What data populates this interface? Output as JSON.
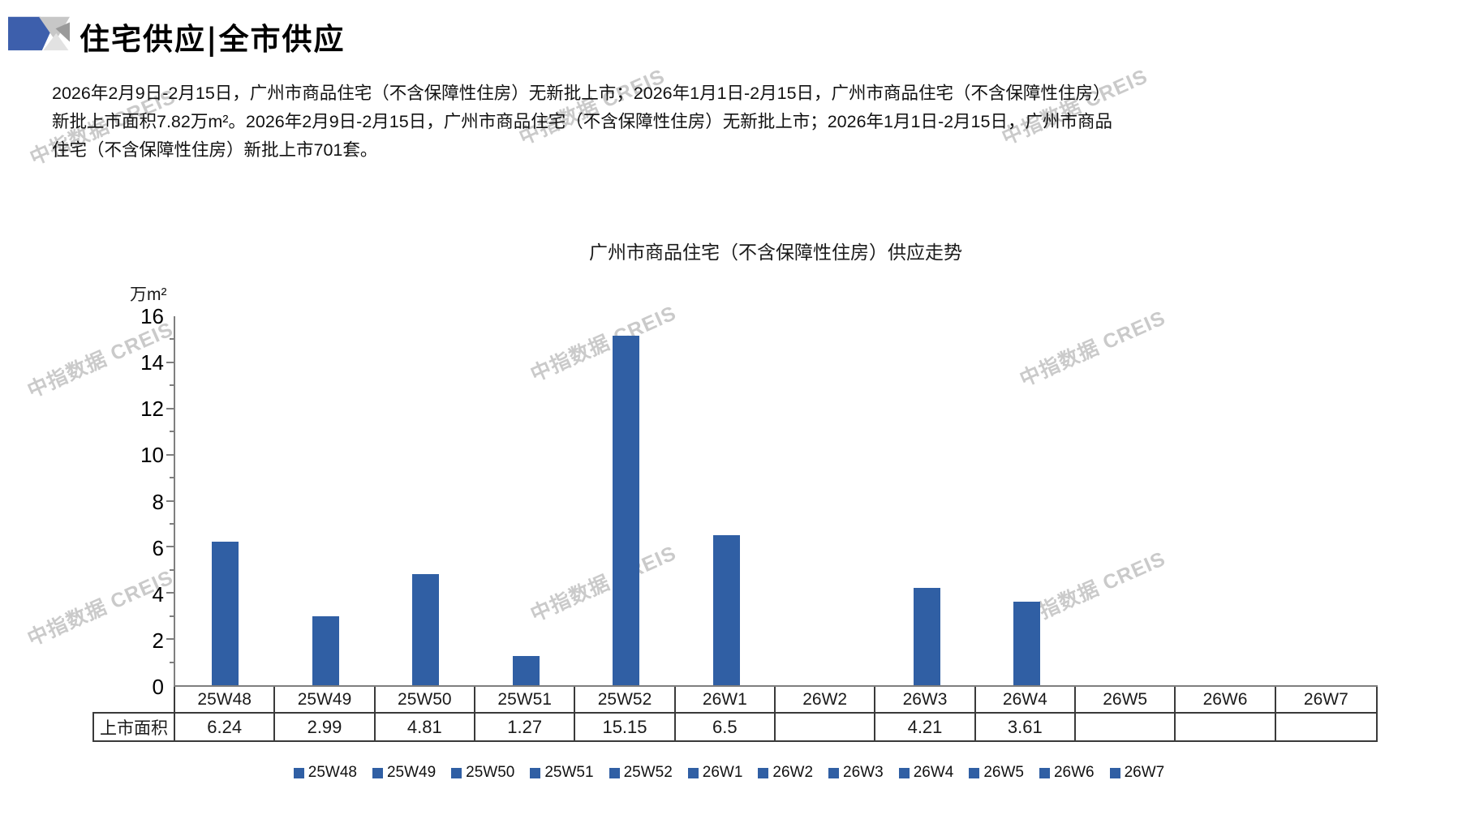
{
  "header": {
    "title": "住宅供应|全市供应"
  },
  "intro": {
    "lines": [
      "2026年2月9日-2月15日，广州市商品住宅（不含保障性住房）无新批上市；2026年1月1日-2月15日，广州市商品住宅（不含保障性住房）",
      "新批上市面积7.82万m²。2026年2月9日-2月15日，广州市商品住宅（不含保障性住房）无新批上市；2026年1月1日-2月15日，广州市商品",
      "住宅（不含保障性住房）新批上市701套。"
    ]
  },
  "watermark": {
    "text": "中指数据 CREIS"
  },
  "chart_data": {
    "type": "bar",
    "title": "广州市商品住宅（不含保障性住房）供应走势",
    "unit_label": "万m²",
    "categories": [
      "25W48",
      "25W49",
      "25W50",
      "25W51",
      "25W52",
      "26W1",
      "26W2",
      "26W3",
      "26W4",
      "26W5",
      "26W6",
      "26W7"
    ],
    "values": [
      6.24,
      2.99,
      4.81,
      1.27,
      15.15,
      6.5,
      null,
      4.21,
      3.61,
      null,
      null,
      null
    ],
    "ylim": [
      0,
      16
    ],
    "yticks": [
      0,
      2,
      4,
      6,
      8,
      10,
      12,
      14,
      16
    ],
    "grid": false,
    "bar_color": "#305fa4",
    "axis_color": "#7f7f7f",
    "table_row_label": "上市面积",
    "table_values": [
      "6.24",
      "2.99",
      "4.81",
      "1.27",
      "15.15",
      "6.5",
      "",
      "4.21",
      "3.61",
      "",
      "",
      ""
    ],
    "legend": [
      "25W48",
      "25W49",
      "25W50",
      "25W51",
      "25W52",
      "26W1",
      "26W2",
      "26W3",
      "26W4",
      "26W5",
      "26W6",
      "26W7"
    ],
    "legend_position": "bottom"
  }
}
